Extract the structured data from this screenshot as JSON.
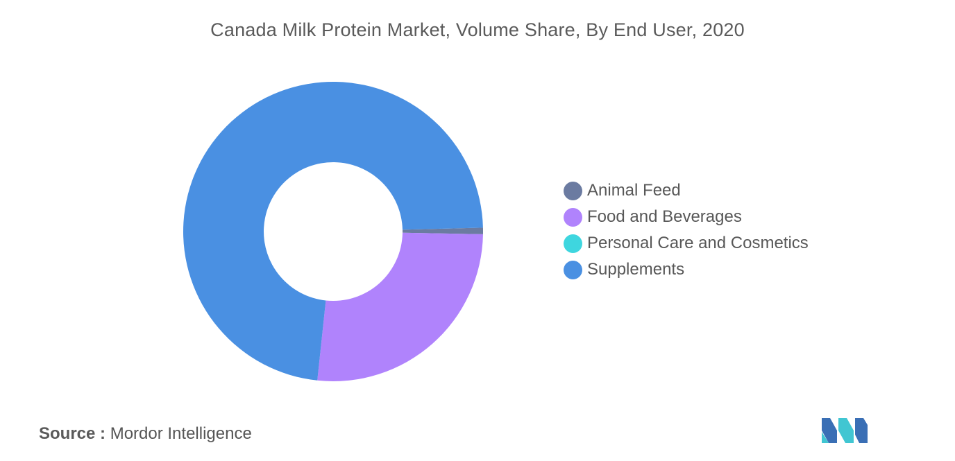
{
  "chart_data": {
    "type": "donut",
    "title": "Canada Milk Protein Market, Volume Share, By End User, 2020",
    "categories": [
      "Animal Feed",
      "Food and Beverages",
      "Personal Care and Cosmetics",
      "Supplements"
    ],
    "values": [
      0.7,
      26.4,
      0.0,
      72.9
    ],
    "unit": "%",
    "colors": [
      "#6b7ba1",
      "#b083fc",
      "#3ed6df",
      "#4a90e2"
    ],
    "legend_position": "right"
  },
  "source": {
    "prefix": "Source :",
    "text": "Mordor Intelligence"
  },
  "logo": {
    "icon": "mordor-intelligence-logo-icon",
    "colors": [
      "#3a6fb5",
      "#41c6d2"
    ]
  }
}
